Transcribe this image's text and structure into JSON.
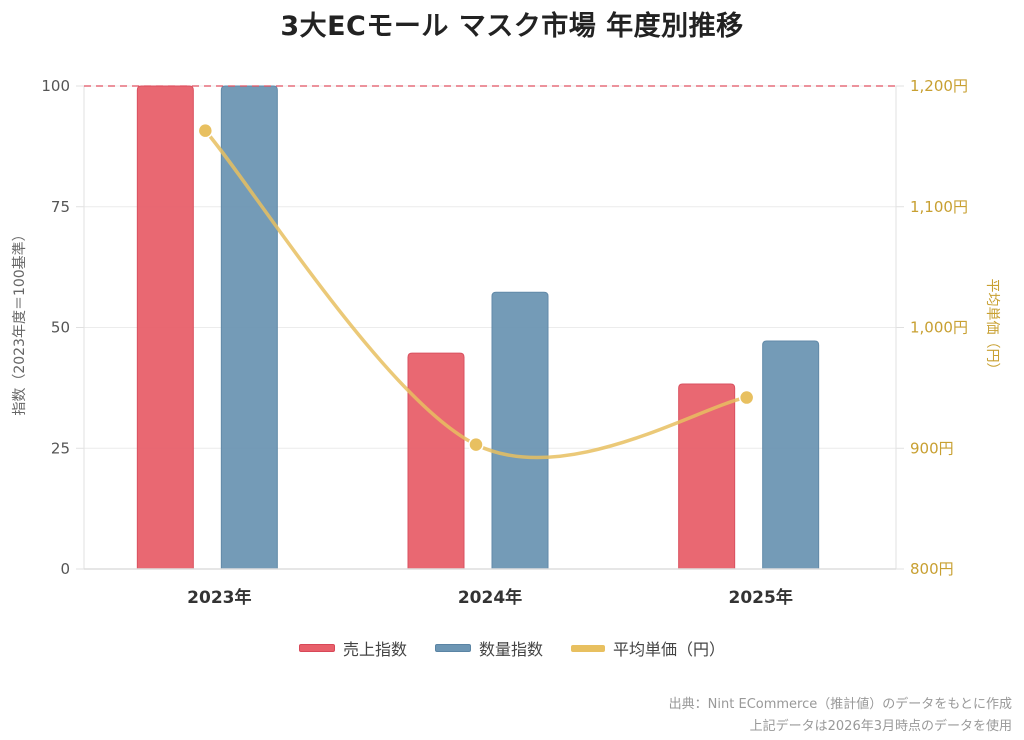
{
  "chart_data": {
    "type": "bar",
    "title": "3大ECモール マスク市場 年度別推移",
    "categories": [
      "2023年",
      "2024年",
      "2025年"
    ],
    "series": [
      {
        "name": "売上指数",
        "type": "bar",
        "axis": "left",
        "color": "#e8606b",
        "values": [
          100,
          44.7,
          38.3
        ]
      },
      {
        "name": "数量指数",
        "type": "bar",
        "axis": "left",
        "color": "#6d96b4",
        "values": [
          100,
          57.3,
          47.2
        ]
      },
      {
        "name": "平均単価（円）",
        "type": "line",
        "axis": "right",
        "color": "#e8c060",
        "values": [
          1163,
          903,
          942
        ]
      }
    ],
    "ylabel": "指数（2023年度＝100基準）",
    "ylim": [
      0,
      100
    ],
    "yticks": [
      0,
      25,
      50,
      75,
      100
    ],
    "ytick_labels": [
      "0",
      "25",
      "50",
      "75",
      "100"
    ],
    "y2label": "平均単価（円）",
    "y2lim": [
      800,
      1200
    ],
    "y2ticks": [
      800,
      900,
      1000,
      1100,
      1200
    ],
    "y2tick_labels": [
      "800円",
      "900円",
      "1,000円",
      "1,100円",
      "1,200円"
    ],
    "reference_line": {
      "value": 100,
      "axis": "left",
      "style": "dashed",
      "color": "#e05060"
    },
    "grid": true,
    "legend_position": "bottom-center",
    "legend": [
      "売上指数",
      "数量指数",
      "平均単価（円）"
    ]
  },
  "footer": {
    "source": "出典：Nint ECommerce（推計値）のデータをもとに作成",
    "note": "上記データは2026年3月時点のデータを使用"
  }
}
